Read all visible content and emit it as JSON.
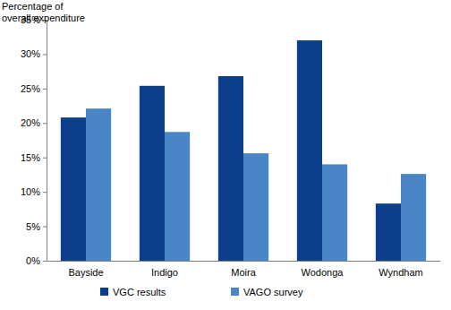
{
  "chart_data": {
    "type": "bar",
    "y_label": [
      "Percentage of",
      "overall expenditure"
    ],
    "categories": [
      "Bayside",
      "Indigo",
      "Moira",
      "Wodonga",
      "Wyndham"
    ],
    "series": [
      {
        "name": "VGC results",
        "color": "#0b3f8c",
        "values": [
          20.8,
          25.4,
          26.8,
          32.0,
          8.3
        ]
      },
      {
        "name": "VAGO survey",
        "color": "#4a86c6",
        "values": [
          22.1,
          18.7,
          15.6,
          14.0,
          12.6
        ]
      }
    ],
    "ylim": [
      0,
      35
    ],
    "yticks": [
      {
        "value": 0,
        "label": "0%"
      },
      {
        "value": 5,
        "label": "5%"
      },
      {
        "value": 10,
        "label": "10%"
      },
      {
        "value": 15,
        "label": "15%"
      },
      {
        "value": 20,
        "label": "20%"
      },
      {
        "value": 25,
        "label": "25%"
      },
      {
        "value": 30,
        "label": "30%"
      },
      {
        "value": 35,
        "label": "35%"
      }
    ],
    "grid": false,
    "legend": "bottom"
  }
}
